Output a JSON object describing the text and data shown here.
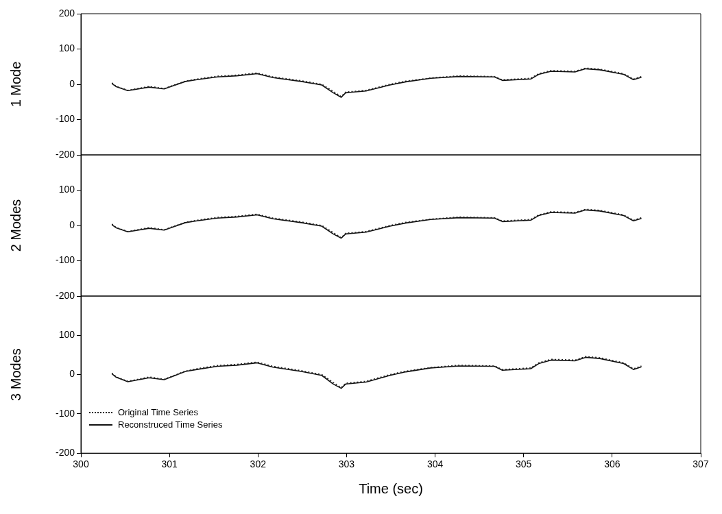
{
  "chart_data": [
    {
      "type": "line",
      "ylabel": "1 Mode",
      "x": [
        300.35,
        300.4,
        300.53,
        300.77,
        300.94,
        301.18,
        301.31,
        301.54,
        301.76,
        301.99,
        302.17,
        302.49,
        302.72,
        302.85,
        302.94,
        302.99,
        303.22,
        303.49,
        303.67,
        303.95,
        304.27,
        304.67,
        304.76,
        305.08,
        305.17,
        305.31,
        305.58,
        305.7,
        305.86,
        306.13,
        306.24,
        306.33
      ],
      "xlim": [
        300,
        307
      ],
      "ylim": [
        -200,
        200
      ],
      "yticks": [
        -200,
        -100,
        0,
        100,
        200
      ],
      "tick_labels": "y",
      "grid": false,
      "series": [
        {
          "color": "#222222",
          "line_style": "dotted",
          "values": [
            4,
            -6,
            -17,
            -6,
            -12,
            9,
            15,
            23,
            26,
            32,
            21,
            10,
            0,
            -20,
            -35,
            -22,
            -17,
            0,
            9,
            18,
            24,
            22,
            13,
            17,
            30,
            39,
            37,
            46,
            43,
            30,
            15,
            22
          ]
        },
        {
          "color": "#111111",
          "line_style": "solid",
          "values": [
            2,
            -7,
            -18,
            -8,
            -13,
            8,
            13,
            21,
            24,
            30,
            19,
            8,
            -2,
            -24,
            -37,
            -24,
            -19,
            -2,
            7,
            17,
            22,
            21,
            11,
            15,
            28,
            37,
            35,
            44,
            41,
            28,
            13,
            20
          ]
        }
      ]
    },
    {
      "type": "line",
      "ylabel": "2 Modes",
      "x": [
        300.35,
        300.4,
        300.53,
        300.77,
        300.94,
        301.18,
        301.31,
        301.54,
        301.76,
        301.99,
        302.17,
        302.49,
        302.72,
        302.85,
        302.94,
        302.99,
        303.22,
        303.49,
        303.67,
        303.95,
        304.27,
        304.67,
        304.76,
        305.08,
        305.17,
        305.31,
        305.58,
        305.7,
        305.86,
        306.13,
        306.24,
        306.33
      ],
      "xlim": [
        300,
        307
      ],
      "ylim": [
        -200,
        200
      ],
      "yticks": [
        -200,
        -100,
        0,
        100,
        {
          "value": 200,
          "label": null
        }
      ],
      "tick_labels": "y",
      "grid": false,
      "series": [
        {
          "color": "#222222",
          "line_style": "dotted",
          "values": [
            4,
            -6,
            -17,
            -6,
            -12,
            9,
            15,
            23,
            26,
            32,
            21,
            10,
            0,
            -20,
            -35,
            -22,
            -17,
            0,
            9,
            18,
            24,
            22,
            13,
            17,
            30,
            39,
            37,
            46,
            43,
            30,
            15,
            22
          ]
        },
        {
          "color": "#111111",
          "line_style": "solid",
          "values": [
            2,
            -7,
            -18,
            -8,
            -13,
            8,
            13,
            21,
            24,
            30,
            19,
            8,
            -2,
            -24,
            -36,
            -24,
            -19,
            -2,
            7,
            17,
            22,
            21,
            11,
            15,
            28,
            37,
            35,
            44,
            41,
            28,
            13,
            20
          ]
        }
      ]
    },
    {
      "type": "line",
      "ylabel": "3 Modes",
      "xlabel": "Time (sec)",
      "x": [
        300.35,
        300.4,
        300.53,
        300.77,
        300.94,
        301.18,
        301.31,
        301.54,
        301.76,
        301.99,
        302.17,
        302.49,
        302.72,
        302.85,
        302.94,
        302.99,
        303.22,
        303.49,
        303.67,
        303.95,
        304.27,
        304.67,
        304.76,
        305.08,
        305.17,
        305.31,
        305.58,
        305.7,
        305.86,
        306.13,
        306.24,
        306.33
      ],
      "xlim": [
        300,
        307
      ],
      "ylim": [
        -200,
        200
      ],
      "yticks": [
        -200,
        -100,
        0,
        100,
        {
          "value": 200,
          "label": null
        }
      ],
      "xticks": [
        300,
        301,
        302,
        303,
        304,
        305,
        306,
        307
      ],
      "grid": false,
      "legend": "bottom left",
      "series": [
        {
          "name": "Original Time Series",
          "color": "#222222",
          "line_style": "dotted",
          "values": [
            4,
            -6,
            -17,
            -6,
            -12,
            9,
            15,
            23,
            26,
            32,
            21,
            10,
            0,
            -20,
            -33,
            -22,
            -17,
            0,
            9,
            18,
            24,
            22,
            13,
            17,
            30,
            39,
            37,
            46,
            43,
            30,
            15,
            22
          ]
        },
        {
          "name": "Reconstruced Time Series",
          "color": "#111111",
          "line_style": "solid",
          "values": [
            2,
            -7,
            -18,
            -8,
            -13,
            8,
            13,
            21,
            24,
            30,
            19,
            8,
            -2,
            -24,
            -35,
            -24,
            -19,
            -2,
            7,
            17,
            22,
            21,
            11,
            15,
            28,
            37,
            35,
            44,
            41,
            28,
            13,
            20
          ]
        }
      ]
    }
  ]
}
